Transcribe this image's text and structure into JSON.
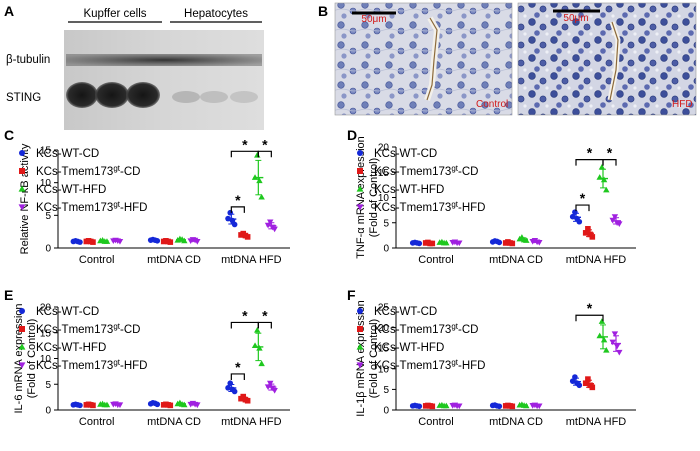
{
  "panels": {
    "A": {
      "label": "A",
      "groups": [
        "Kupffer cells",
        "Hepatocytes"
      ],
      "bands": [
        "β-tubulin",
        "STING"
      ]
    },
    "B": {
      "label": "B",
      "images": [
        {
          "scale": "50μm",
          "condition": "Control"
        },
        {
          "scale": "50μm",
          "condition": "HFD"
        }
      ]
    }
  },
  "legend": {
    "items": [
      {
        "prefix": "KCs-WT-CD",
        "sup": "",
        "suffix": "",
        "color": "#1428d8",
        "marker": "circle"
      },
      {
        "prefix": "KCs-Tmem173",
        "sup": "gt",
        "suffix": "-CD",
        "color": "#e01818",
        "marker": "square"
      },
      {
        "prefix": "KCs-WT-HFD",
        "sup": "",
        "suffix": "",
        "color": "#1ec81e",
        "marker": "triangle"
      },
      {
        "prefix": "KCs-Tmem173",
        "sup": "gt",
        "suffix": "-HFD",
        "color": "#a020e0",
        "marker": "tri-down"
      }
    ]
  },
  "chart_data": [
    {
      "panel": "C",
      "type": "scatter",
      "ylabel": [
        "Relative NF-κB activity"
      ],
      "ylim": [
        0,
        15
      ],
      "yticks": [
        0,
        5,
        10,
        15
      ],
      "categories": [
        "Control",
        "mtDNA CD",
        "mtDNA HFD"
      ],
      "series": [
        {
          "name": "KCs-WT-CD",
          "values": [
            [
              1.0,
              1.1,
              1.0,
              0.9
            ],
            [
              1.2,
              1.3,
              1.2,
              1.1
            ],
            [
              4.5,
              5.4,
              4.2,
              3.6
            ]
          ]
        },
        {
          "name": "KCs-Tmem173gt-CD",
          "values": [
            [
              1.0,
              1.1,
              1.0,
              0.9
            ],
            [
              1.0,
              1.1,
              1.0,
              0.9
            ],
            [
              2.0,
              2.2,
              1.9,
              1.7
            ]
          ]
        },
        {
          "name": "KCs-WT-HFD",
          "values": [
            [
              1.1,
              1.2,
              1.0,
              1.0
            ],
            [
              1.2,
              1.4,
              1.3,
              1.1
            ],
            [
              10.8,
              14.2,
              10.3,
              7.8
            ]
          ]
        },
        {
          "name": "KCs-Tmem173gt-HFD",
          "values": [
            [
              1.1,
              1.2,
              1.1,
              1.0
            ],
            [
              1.1,
              1.3,
              1.2,
              1.0
            ],
            [
              3.5,
              4.0,
              3.2,
              2.9
            ]
          ]
        }
      ],
      "significance": [
        {
          "from": [
            2,
            0
          ],
          "to": [
            2,
            1
          ],
          "y": 6.3,
          "label": "*"
        },
        {
          "from": [
            2,
            0
          ],
          "to": [
            2,
            2
          ],
          "y": 14.8,
          "label": "*"
        },
        {
          "from": [
            2,
            2
          ],
          "to": [
            2,
            3
          ],
          "y": 14.8,
          "label": "*"
        }
      ]
    },
    {
      "panel": "D",
      "type": "scatter",
      "ylabel": [
        "TNF-α mRNA expression",
        "(Fold of Control)"
      ],
      "ylim": [
        0,
        20
      ],
      "yticks": [
        0,
        5,
        10,
        15,
        20
      ],
      "categories": [
        "Control",
        "mtDNA CD",
        "mtDNA HFD"
      ],
      "series": [
        {
          "name": "KCs-WT-CD",
          "values": [
            [
              1.0,
              1.1,
              1.0,
              0.9
            ],
            [
              1.2,
              1.4,
              1.3,
              1.1
            ],
            [
              6.2,
              7.1,
              5.8,
              5.2
            ]
          ]
        },
        {
          "name": "KCs-Tmem173gt-CD",
          "values": [
            [
              1.0,
              1.1,
              0.9,
              0.9
            ],
            [
              1.0,
              1.2,
              1.0,
              0.9
            ],
            [
              3.0,
              3.8,
              2.7,
              2.2
            ]
          ]
        },
        {
          "name": "KCs-WT-HFD",
          "values": [
            [
              1.1,
              1.2,
              1.0,
              1.0
            ],
            [
              1.8,
              2.1,
              1.6,
              1.5
            ],
            [
              14.0,
              16.0,
              13.5,
              11.5
            ]
          ]
        },
        {
          "name": "KCs-Tmem173gt-HFD",
          "values": [
            [
              1.1,
              1.2,
              1.0,
              1.0
            ],
            [
              1.3,
              1.5,
              1.2,
              1.1
            ],
            [
              5.5,
              6.2,
              5.0,
              4.8
            ]
          ]
        }
      ],
      "significance": [
        {
          "from": [
            2,
            0
          ],
          "to": [
            2,
            1
          ],
          "y": 8.5,
          "label": "*"
        },
        {
          "from": [
            2,
            0
          ],
          "to": [
            2,
            2
          ],
          "y": 17.5,
          "label": "*"
        },
        {
          "from": [
            2,
            2
          ],
          "to": [
            2,
            3
          ],
          "y": 17.5,
          "label": "*"
        }
      ]
    },
    {
      "panel": "E",
      "type": "scatter",
      "ylabel": [
        "IL-6 mRNA expression",
        "(Fold of Control)"
      ],
      "ylim": [
        0,
        20
      ],
      "yticks": [
        0,
        5,
        10,
        15,
        20
      ],
      "categories": [
        "Control",
        "mtDNA CD",
        "mtDNA HFD"
      ],
      "series": [
        {
          "name": "KCs-WT-CD",
          "values": [
            [
              1.0,
              1.1,
              1.0,
              0.9
            ],
            [
              1.2,
              1.4,
              1.3,
              1.1
            ],
            [
              4.3,
              5.2,
              4.0,
              3.6
            ]
          ]
        },
        {
          "name": "KCs-Tmem173gt-CD",
          "values": [
            [
              1.0,
              1.1,
              1.0,
              0.9
            ],
            [
              1.0,
              1.1,
              1.0,
              0.9
            ],
            [
              2.2,
              2.6,
              2.0,
              1.8
            ]
          ]
        },
        {
          "name": "KCs-WT-HFD",
          "values": [
            [
              1.1,
              1.2,
              1.0,
              1.0
            ],
            [
              1.2,
              1.4,
              1.1,
              1.0
            ],
            [
              12.5,
              15.5,
              12.0,
              9.0
            ]
          ]
        },
        {
          "name": "KCs-Tmem173gt-HFD",
          "values": [
            [
              1.1,
              1.2,
              1.0,
              1.0
            ],
            [
              1.1,
              1.3,
              1.1,
              1.0
            ],
            [
              4.5,
              5.2,
              4.3,
              3.8
            ]
          ]
        }
      ],
      "significance": [
        {
          "from": [
            2,
            0
          ],
          "to": [
            2,
            1
          ],
          "y": 7.0,
          "label": "*"
        },
        {
          "from": [
            2,
            0
          ],
          "to": [
            2,
            2
          ],
          "y": 17.0,
          "label": "*"
        },
        {
          "from": [
            2,
            2
          ],
          "to": [
            2,
            3
          ],
          "y": 17.0,
          "label": "*"
        }
      ]
    },
    {
      "panel": "F",
      "type": "scatter",
      "ylabel": [
        "IL-1β mRNA expression",
        "(Fold of Control)"
      ],
      "ylim": [
        0,
        25
      ],
      "yticks": [
        0,
        5,
        10,
        15,
        20,
        25
      ],
      "categories": [
        "Control",
        "mtDNA CD",
        "mtDNA HFD"
      ],
      "series": [
        {
          "name": "KCs-WT-CD",
          "values": [
            [
              1.0,
              1.1,
              1.0,
              0.9
            ],
            [
              1.1,
              1.2,
              1.0,
              0.9
            ],
            [
              7.0,
              8.0,
              6.5,
              6.0
            ]
          ]
        },
        {
          "name": "KCs-Tmem173gt-CD",
          "values": [
            [
              1.0,
              1.1,
              1.0,
              0.9
            ],
            [
              1.0,
              1.1,
              1.0,
              0.9
            ],
            [
              6.5,
              7.5,
              6.0,
              5.5
            ]
          ]
        },
        {
          "name": "KCs-WT-HFD",
          "values": [
            [
              1.1,
              1.2,
              1.0,
              1.0
            ],
            [
              1.2,
              1.3,
              1.1,
              1.0
            ],
            [
              18.0,
              21.5,
              17.0,
              14.5
            ]
          ]
        },
        {
          "name": "KCs-Tmem173gt-HFD",
          "values": [
            [
              1.1,
              1.2,
              1.0,
              1.0
            ],
            [
              1.1,
              1.2,
              1.0,
              1.0
            ],
            [
              16.5,
              18.5,
              15.5,
              14.0
            ]
          ]
        }
      ],
      "significance": [
        {
          "from": [
            2,
            0
          ],
          "to": [
            2,
            2
          ],
          "y": 23.0,
          "label": "*"
        }
      ]
    }
  ]
}
